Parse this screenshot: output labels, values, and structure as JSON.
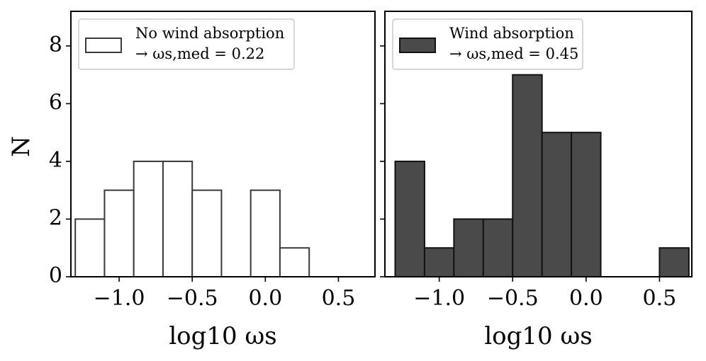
{
  "chart_data": {
    "type": "bar",
    "shared_ylabel": "N",
    "ylim": [
      0,
      9.2
    ],
    "yticks": [
      0,
      2,
      4,
      6,
      8
    ],
    "panels": [
      {
        "name": "no-wind",
        "xlabel": "log10 ωs",
        "xlim": [
          -1.33,
          0.75
        ],
        "xticks": [
          -1.0,
          -0.5,
          0.0,
          0.5
        ],
        "xtick_labels": [
          "−1.0",
          "−0.5",
          "0.0",
          "0.5"
        ],
        "legend": {
          "label": "No wind absorption",
          "sublabel": "→ ωs,med = 0.22",
          "position": "top-left"
        },
        "bins": [
          -1.3,
          -1.1,
          -0.9,
          -0.7,
          -0.5,
          -0.3,
          -0.1,
          0.1,
          0.3
        ],
        "counts": [
          2,
          3,
          4,
          4,
          3,
          0,
          3,
          1
        ],
        "fill": "#ffffff",
        "edge": "#3a3a3a"
      },
      {
        "name": "wind",
        "xlabel": "log10 ωs",
        "xlim": [
          -1.37,
          0.72
        ],
        "xticks": [
          -1.0,
          -0.5,
          0.0,
          0.5
        ],
        "xtick_labels": [
          "−1.0",
          "−0.5",
          "0.0",
          "0.5"
        ],
        "legend": {
          "label": "Wind absorption",
          "sublabel": "→ ωs,med = 0.45",
          "position": "top-left"
        },
        "bins": [
          -1.3,
          -1.1,
          -0.9,
          -0.7,
          -0.5,
          -0.3,
          -0.1,
          0.1,
          0.3,
          0.5,
          0.7
        ],
        "counts": [
          4,
          1,
          2,
          2,
          7,
          5,
          5,
          0,
          0,
          1
        ],
        "fill": "#4a4a4a",
        "edge": "#111111"
      }
    ]
  }
}
